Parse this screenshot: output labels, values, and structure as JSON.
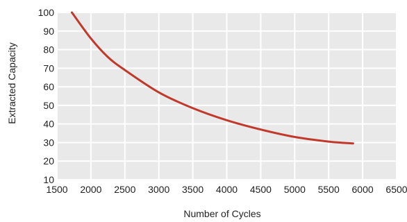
{
  "chart_data": {
    "type": "line",
    "title": "",
    "xlabel": "Number of Cycles",
    "ylabel": "Extracted Capacity",
    "xlim": [
      1500,
      6500
    ],
    "ylim": [
      10,
      100
    ],
    "x_ticks": [
      1500,
      2000,
      2500,
      3000,
      3500,
      4000,
      4500,
      5000,
      5500,
      6000,
      6500
    ],
    "y_ticks": [
      10,
      20,
      30,
      40,
      50,
      60,
      70,
      80,
      90,
      100
    ],
    "grid": true,
    "legend": "none",
    "series": [
      {
        "color": "#c0392b",
        "x": [
          1720,
          2000,
          2250,
          2500,
          3000,
          3500,
          4000,
          4500,
          5000,
          5500,
          5860
        ],
        "y": [
          100,
          86,
          76,
          69,
          57,
          48.5,
          42,
          37,
          33,
          30.5,
          29.5
        ]
      }
    ],
    "colors": {
      "background": "#ffffff",
      "plot_background": "#e9e9e9",
      "grid": "#ffffff",
      "line": "#c0392b",
      "text": "#222222"
    }
  }
}
